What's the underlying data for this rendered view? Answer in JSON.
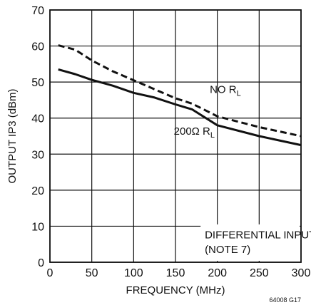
{
  "chart_data": {
    "type": "line",
    "xlabel": "FREQUENCY (MHz)",
    "ylabel": "OUTPUT IP3 (dBm)",
    "xlim": [
      0,
      300
    ],
    "ylim": [
      0,
      70
    ],
    "xticks": [
      0,
      50,
      100,
      150,
      200,
      250,
      300
    ],
    "yticks": [
      0,
      10,
      20,
      30,
      40,
      50,
      60,
      70
    ],
    "grid": true,
    "series": [
      {
        "name": "NO R",
        "name_subscript": "L",
        "style": "dashed",
        "x": [
          10,
          30,
          50,
          75,
          100,
          125,
          150,
          170,
          200,
          250,
          300
        ],
        "y": [
          60.2,
          59.0,
          56.0,
          53.0,
          50.5,
          48.0,
          45.5,
          44.0,
          40.5,
          37.5,
          35.0
        ]
      },
      {
        "name": "200Ω R",
        "name_subscript": "L",
        "style": "solid",
        "x": [
          10,
          30,
          50,
          75,
          100,
          125,
          150,
          170,
          200,
          250,
          300
        ],
        "y": [
          53.5,
          52.2,
          50.6,
          49.0,
          47.0,
          45.7,
          43.8,
          42.4,
          38.0,
          35.0,
          32.5
        ]
      }
    ],
    "annotation": [
      "DIFFERENTIAL INPUT",
      "(NOTE 7)"
    ],
    "figure_id": "64008 G17"
  },
  "colors": {
    "line": "#111111",
    "grid": "#111111",
    "background": "#ffffff"
  }
}
